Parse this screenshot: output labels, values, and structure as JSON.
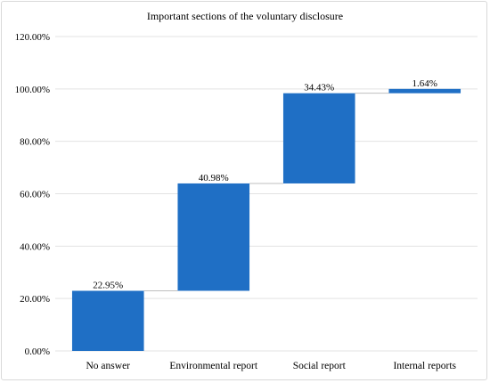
{
  "chart_data": {
    "type": "bar",
    "subtype": "waterfall",
    "title": "Important sections of the voluntary disclosure",
    "xlabel": "",
    "ylabel": "",
    "categories": [
      "No answer",
      "Environmental report",
      "Social report",
      "Internal reports"
    ],
    "values": [
      22.95,
      40.98,
      34.43,
      1.64
    ],
    "data_labels": [
      "22.95%",
      "40.98%",
      "34.43%",
      "1.64%"
    ],
    "ylim": [
      0,
      120
    ],
    "yticks": [
      0,
      20,
      40,
      60,
      80,
      100,
      120
    ],
    "ytick_labels": [
      "0.00%",
      "20.00%",
      "40.00%",
      "60.00%",
      "80.00%",
      "100.00%",
      "120.00%"
    ],
    "grid": true,
    "legend": "none",
    "bar_color": "#1f6fc5"
  }
}
